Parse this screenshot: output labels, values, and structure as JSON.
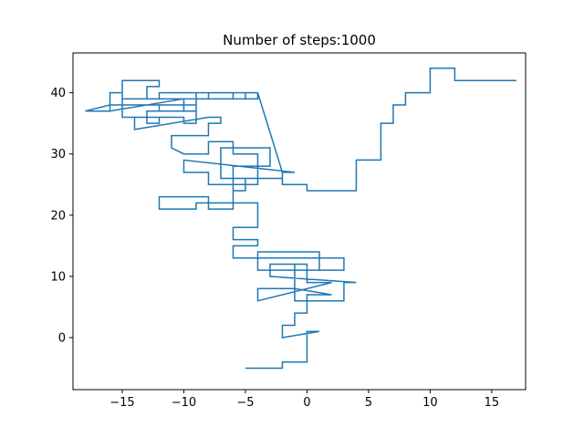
{
  "chart_data": {
    "type": "line",
    "title": "Number of steps:1000",
    "xlabel": "",
    "ylabel": "",
    "xlim": [
      -19,
      17.75
    ],
    "ylim": [
      -8.5,
      46.5
    ],
    "xticks": [
      -15,
      -10,
      -5,
      0,
      5,
      10,
      15
    ],
    "yticks": [
      0,
      10,
      20,
      30,
      40
    ],
    "grid": false,
    "legend": "none",
    "series": [
      {
        "color": "#1f77b4",
        "x": [
          -5,
          -2,
          -2,
          0,
          0,
          1,
          -2,
          -2,
          -1,
          -1,
          0,
          0,
          2,
          -1,
          -1,
          0,
          0,
          2,
          -4,
          -4,
          -1,
          -1,
          3,
          3,
          4,
          -3,
          -3,
          0,
          0,
          1,
          1,
          -4,
          -4,
          3,
          3,
          -6,
          -6,
          -4,
          -4,
          -6,
          -6,
          -4,
          -4,
          -9,
          -9,
          -12,
          -12,
          -8,
          -8,
          -6,
          -6,
          -5,
          -5,
          -7,
          -7,
          -7,
          -3,
          -3,
          -6,
          -6,
          -5,
          -5,
          -2,
          -2,
          -1,
          -10,
          -10,
          -8,
          -8,
          -4,
          -4,
          -6,
          -6,
          -8,
          -8,
          -10,
          -11,
          -11,
          -8,
          -8,
          -7,
          -7,
          -8,
          -14,
          -14,
          -10,
          -10,
          -9,
          -9,
          -10,
          -10,
          -13,
          -13,
          -12,
          -12,
          -15,
          -15,
          -10,
          -10,
          -8,
          -8,
          -4,
          -4,
          -6,
          -6,
          -9,
          -9,
          -12,
          -12,
          -16,
          -18,
          -16,
          -16,
          -15,
          -15,
          -12,
          -12,
          -13,
          -13,
          -10,
          -16,
          -16,
          -15,
          -15,
          -12,
          -12,
          -9,
          -9,
          -5,
          -5,
          -4,
          -2,
          -2,
          0,
          0,
          4,
          4,
          6,
          6,
          7,
          7,
          8,
          8,
          10,
          10,
          12,
          12,
          17
        ],
        "y": [
          -5,
          -5,
          -4,
          -4,
          1,
          1,
          0,
          2,
          2,
          4,
          4,
          7,
          7,
          8,
          12,
          12,
          9,
          9,
          6,
          8,
          8,
          6,
          6,
          9,
          9,
          10,
          12,
          12,
          11,
          11,
          14,
          14,
          11,
          11,
          13,
          13,
          15,
          15,
          16,
          16,
          18,
          18,
          22,
          22,
          21,
          21,
          23,
          23,
          21,
          21,
          24,
          24,
          26,
          26,
          31,
          31,
          31,
          28,
          28,
          24,
          24,
          26,
          26,
          27,
          27,
          29,
          27,
          27,
          25,
          25,
          30,
          30,
          32,
          32,
          30,
          30,
          31,
          33,
          33,
          35,
          35,
          36,
          36,
          34,
          36,
          36,
          35,
          35,
          38,
          38,
          37,
          37,
          35,
          35,
          36,
          36,
          38,
          38,
          39,
          39,
          40,
          40,
          39,
          39,
          40,
          40,
          37,
          37,
          38,
          38,
          37,
          37,
          38,
          38,
          42,
          42,
          41,
          41,
          39,
          39,
          37,
          40,
          40,
          39,
          39,
          40,
          40,
          39,
          39,
          40,
          40,
          27,
          25,
          25,
          24,
          24,
          29,
          29,
          35,
          35,
          38,
          38,
          40,
          40,
          44,
          44,
          42,
          42
        ]
      }
    ]
  }
}
